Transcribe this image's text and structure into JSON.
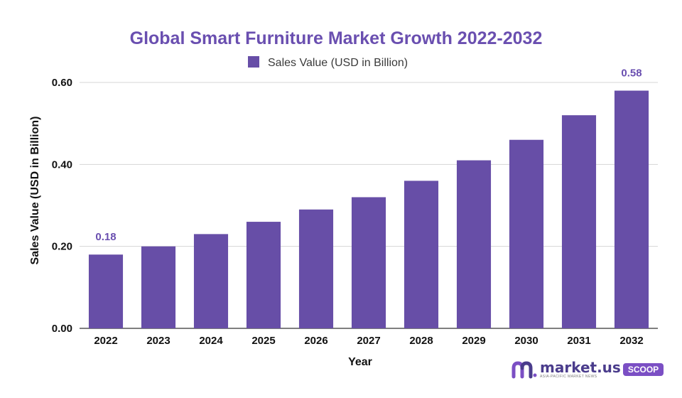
{
  "chart_data": {
    "type": "bar",
    "title": "Global Smart Furniture Market Growth 2022-2032",
    "legend": [
      "Sales Value (USD in Billion)"
    ],
    "legend_position": "top-center",
    "xlabel": "Year",
    "ylabel": "Sales Value (USD in Billion)",
    "categories": [
      "2022",
      "2023",
      "2024",
      "2025",
      "2026",
      "2027",
      "2028",
      "2029",
      "2030",
      "2031",
      "2032"
    ],
    "series": [
      {
        "name": "Sales Value (USD in Billion)",
        "values": [
          0.18,
          0.2,
          0.23,
          0.26,
          0.29,
          0.32,
          0.36,
          0.41,
          0.46,
          0.52,
          0.58
        ]
      }
    ],
    "data_labels": [
      {
        "category": "2022",
        "text": "0.18"
      },
      {
        "category": "2032",
        "text": "0.58"
      }
    ],
    "yticks": [
      "0.00",
      "0.20",
      "0.40",
      "0.60"
    ],
    "ylim": [
      0,
      0.6
    ],
    "grid": true,
    "colors": {
      "bar": "#674ea7",
      "title": "#6a4fb0"
    }
  },
  "brand": {
    "name": "market.us",
    "tagline": "ASIA-PACIFIC MARKET NEWS",
    "badge": "SCOOP"
  }
}
